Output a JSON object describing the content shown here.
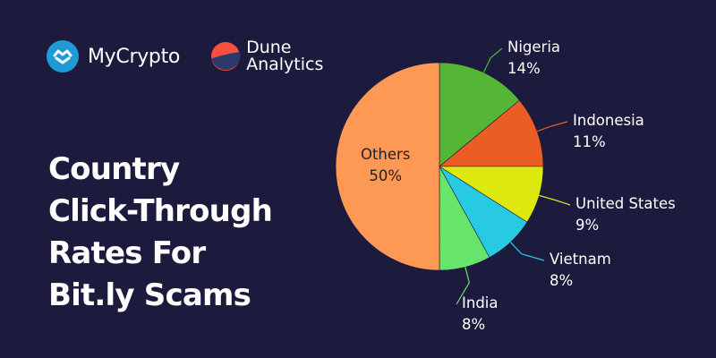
{
  "brand": {
    "mycrypto": "MyCrypto",
    "dune_line1": "Dune",
    "dune_line2": "Analytics"
  },
  "title_lines": [
    "Country",
    "Click-Through",
    "Rates For",
    "Bit.ly Scams"
  ],
  "colors": {
    "background": "#1c1a3d",
    "mycrypto_blue": "#1e9bd7",
    "dune_orange": "#f4513c",
    "dune_navy": "#2b3a6b"
  },
  "chart_data": {
    "type": "pie",
    "slices": [
      {
        "label": "Nigeria",
        "value": 14,
        "value_label": "14%",
        "color": "#55b534"
      },
      {
        "label": "Indonesia",
        "value": 11,
        "value_label": "11%",
        "color": "#eb5d24"
      },
      {
        "label": "United States",
        "value": 9,
        "value_label": "9%",
        "color": "#dde80f"
      },
      {
        "label": "Vietnam",
        "value": 8,
        "value_label": "8%",
        "color": "#27c9e3"
      },
      {
        "label": "India",
        "value": 8,
        "value_label": "8%",
        "color": "#67e46c"
      },
      {
        "label": "Others",
        "value": 50,
        "value_label": "50%",
        "color": "#fd9855"
      }
    ]
  }
}
